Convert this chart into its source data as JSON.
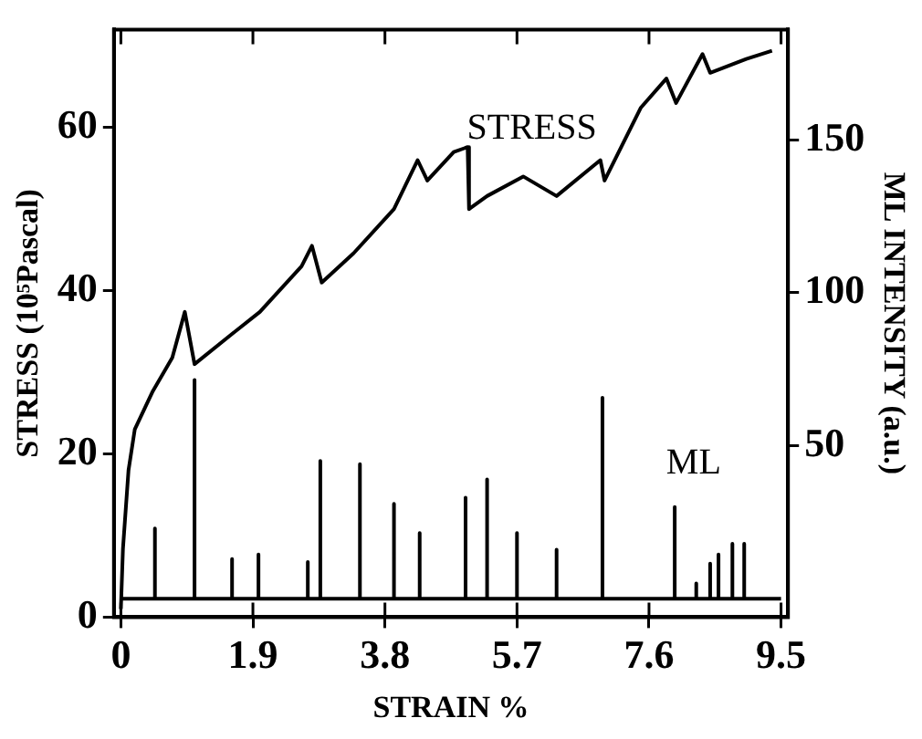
{
  "chart_data": {
    "type": "line",
    "xlabel": "STRAIN %",
    "ylabel": "STRESS (10⁵Pascal)",
    "y2label": "ML INTENSITY (a.u.)",
    "xlim": [
      -0.1,
      9.6
    ],
    "xticks": [
      0,
      1.9,
      3.8,
      5.7,
      7.6,
      9.5
    ],
    "ylim": [
      0,
      72
    ],
    "yticks": [
      0,
      20,
      40,
      60
    ],
    "y2lim": [
      -6,
      186
    ],
    "y2ticks": [
      50,
      100,
      150
    ],
    "grid": false,
    "legend": false,
    "marker": "none",
    "line_style": "solid",
    "series": [
      {
        "name": "STRESS",
        "color": "#000000",
        "x": [
          0,
          0.03,
          0.11,
          0.2,
          0.46,
          0.74,
          0.92,
          1.06,
          1.6,
          2.0,
          2.6,
          2.75,
          2.89,
          3.35,
          3.93,
          4.27,
          4.41,
          4.79,
          4.99,
          5.01,
          5.27,
          5.79,
          6.27,
          6.9,
          6.96,
          7.48,
          7.85,
          7.99,
          8.37,
          8.48,
          9.0,
          9.37
        ],
        "values": [
          1,
          8.4,
          18,
          23,
          27.7,
          31.8,
          37.4,
          31,
          34.7,
          37.4,
          43,
          45.5,
          41,
          44.6,
          50,
          56,
          53.5,
          57,
          57.6,
          50,
          51.6,
          54,
          51.6,
          56,
          53.5,
          62.4,
          66,
          63,
          69,
          66.7,
          68.4,
          69.4
        ]
      },
      {
        "name": "ML",
        "color": "#000000",
        "axis": "y2",
        "x": [
          0,
          0.49,
          0.49,
          0.49,
          1.06,
          1.06,
          1.06,
          1.6,
          1.6,
          1.6,
          1.98,
          1.98,
          1.98,
          2.69,
          2.69,
          2.69,
          2.87,
          2.87,
          2.87,
          3.44,
          3.44,
          3.44,
          3.93,
          3.93,
          3.93,
          4.3,
          4.3,
          4.3,
          4.96,
          4.96,
          4.96,
          5.27,
          5.27,
          5.27,
          5.7,
          5.7,
          5.7,
          6.27,
          6.27,
          6.27,
          6.93,
          6.93,
          6.93,
          7.97,
          7.97,
          7.97,
          8.28,
          8.28,
          8.28,
          8.48,
          8.48,
          8.48,
          8.6,
          8.6,
          8.6,
          8.8,
          8.8,
          8.8,
          8.97,
          8.97,
          8.97,
          9.5
        ],
        "values": [
          0,
          0,
          23,
          0,
          0,
          71.5,
          0,
          0,
          13,
          0,
          0,
          14.5,
          0,
          0,
          12,
          0,
          0,
          45,
          0,
          0,
          44,
          0,
          0,
          31,
          0,
          0,
          21.5,
          0,
          0,
          33,
          0,
          0,
          39,
          0,
          0,
          21.5,
          0,
          0,
          16,
          0,
          0,
          65.7,
          0,
          0,
          30,
          0,
          0,
          5,
          0,
          0,
          11.5,
          0,
          0,
          14.5,
          0,
          0,
          18,
          0,
          0,
          18,
          0,
          0
        ]
      }
    ]
  }
}
